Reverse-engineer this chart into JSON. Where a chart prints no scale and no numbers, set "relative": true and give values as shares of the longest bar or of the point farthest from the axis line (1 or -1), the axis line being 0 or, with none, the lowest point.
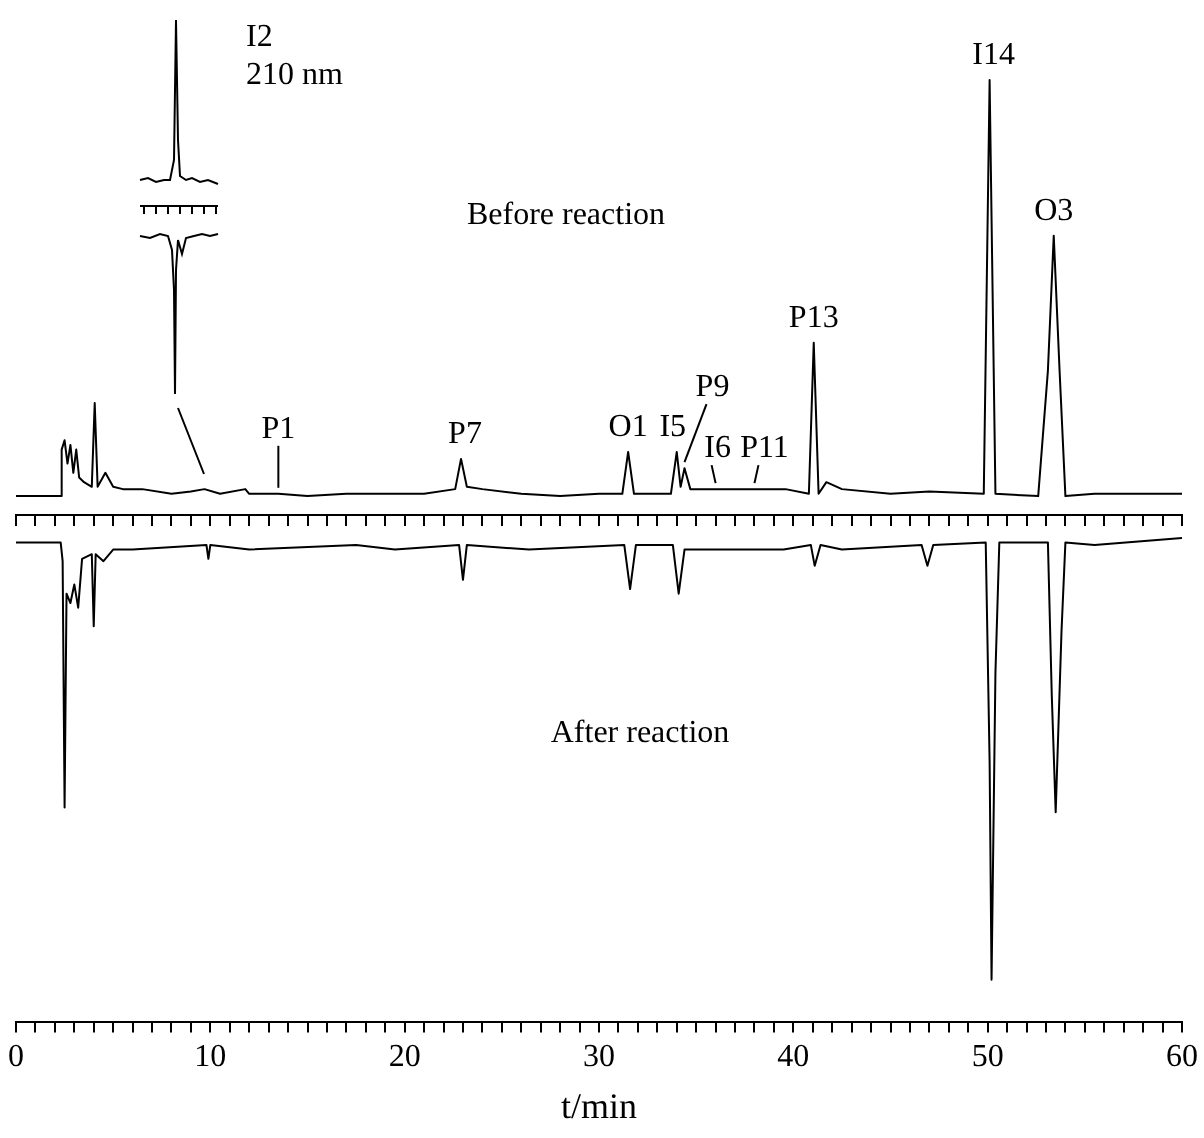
{
  "chart_data": {
    "type": "line",
    "relative": true,
    "grid": false,
    "legend": false,
    "marker": "none",
    "line_style": "solid",
    "xlabel": "t/min",
    "xlim": [
      0,
      60
    ],
    "xticks": [
      0,
      {
        "value": 1,
        "label": null
      },
      {
        "value": 2,
        "label": null
      },
      {
        "value": 3,
        "label": null
      },
      {
        "value": 4,
        "label": null
      },
      {
        "value": 5,
        "label": null
      },
      {
        "value": 6,
        "label": null
      },
      {
        "value": 7,
        "label": null
      },
      {
        "value": 8,
        "label": null
      },
      {
        "value": 9,
        "label": null
      },
      10,
      {
        "value": 11,
        "label": null
      },
      {
        "value": 12,
        "label": null
      },
      {
        "value": 13,
        "label": null
      },
      {
        "value": 14,
        "label": null
      },
      {
        "value": 15,
        "label": null
      },
      {
        "value": 16,
        "label": null
      },
      {
        "value": 17,
        "label": null
      },
      {
        "value": 18,
        "label": null
      },
      {
        "value": 19,
        "label": null
      },
      20,
      {
        "value": 21,
        "label": null
      },
      {
        "value": 22,
        "label": null
      },
      {
        "value": 23,
        "label": null
      },
      {
        "value": 24,
        "label": null
      },
      {
        "value": 25,
        "label": null
      },
      {
        "value": 26,
        "label": null
      },
      {
        "value": 27,
        "label": null
      },
      {
        "value": 28,
        "label": null
      },
      {
        "value": 29,
        "label": null
      },
      30,
      {
        "value": 31,
        "label": null
      },
      {
        "value": 32,
        "label": null
      },
      {
        "value": 33,
        "label": null
      },
      {
        "value": 34,
        "label": null
      },
      {
        "value": 35,
        "label": null
      },
      {
        "value": 36,
        "label": null
      },
      {
        "value": 37,
        "label": null
      },
      {
        "value": 38,
        "label": null
      },
      {
        "value": 39,
        "label": null
      },
      40,
      {
        "value": 41,
        "label": null
      },
      {
        "value": 42,
        "label": null
      },
      {
        "value": 43,
        "label": null
      },
      {
        "value": 44,
        "label": null
      },
      {
        "value": 45,
        "label": null
      },
      {
        "value": 46,
        "label": null
      },
      {
        "value": 47,
        "label": null
      },
      {
        "value": 48,
        "label": null
      },
      {
        "value": 49,
        "label": null
      },
      50,
      {
        "value": 51,
        "label": null
      },
      {
        "value": 52,
        "label": null
      },
      {
        "value": 53,
        "label": null
      },
      {
        "value": 54,
        "label": null
      },
      {
        "value": 55,
        "label": null
      },
      {
        "value": 56,
        "label": null
      },
      {
        "value": 57,
        "label": null
      },
      {
        "value": 58,
        "label": null
      },
      {
        "value": 59,
        "label": null
      },
      60
    ],
    "series": [
      {
        "color": "#000000",
        "x": [
          0,
          2.3,
          2.35,
          2.5,
          2.65,
          2.8,
          2.95,
          3.1,
          3.25,
          3.5,
          3.9,
          4.05,
          4.2,
          4.6,
          5.0,
          5.5,
          6.5,
          8,
          9.0,
          9.7,
          10.5,
          11.8,
          12,
          13.5,
          15,
          17,
          19,
          21,
          22.6,
          22.9,
          23.2,
          24,
          26,
          28,
          30,
          31.2,
          31.5,
          31.8,
          33.7,
          34.0,
          34.2,
          34.4,
          34.7,
          36,
          38,
          39.6,
          40.8,
          41.05,
          41.3,
          41.7,
          42.5,
          45,
          47,
          49.8,
          50.1,
          50.4,
          52.6,
          53.1,
          53.4,
          53.7,
          54,
          55.5,
          60
        ],
        "values": [
          0.04,
          0.04,
          0.14,
          0.16,
          0.11,
          0.15,
          0.09,
          0.14,
          0.08,
          0.07,
          0.06,
          0.24,
          0.06,
          0.09,
          0.06,
          0.055,
          0.055,
          0.045,
          0.05,
          0.055,
          0.045,
          0.055,
          0.045,
          0.045,
          0.04,
          0.045,
          0.045,
          0.045,
          0.055,
          0.12,
          0.06,
          0.055,
          0.045,
          0.04,
          0.045,
          0.045,
          0.135,
          0.045,
          0.045,
          0.135,
          0.06,
          0.1,
          0.055,
          0.055,
          0.055,
          0.055,
          0.045,
          0.37,
          0.045,
          0.07,
          0.055,
          0.045,
          0.05,
          0.045,
          0.935,
          0.045,
          0.04,
          0.31,
          0.6,
          0.31,
          0.04,
          0.045,
          0.045
        ]
      },
      {
        "color": "#000000",
        "x": [
          0,
          2.3,
          2.4,
          2.5,
          2.6,
          2.8,
          3.0,
          3.2,
          3.4,
          3.9,
          4.0,
          4.1,
          4.5,
          5,
          6,
          9.8,
          9.9,
          10,
          12,
          17.5,
          19.5,
          22.8,
          23.0,
          23.2,
          26.4,
          31.3,
          31.6,
          31.9,
          33.8,
          34.1,
          34.4,
          35,
          38,
          39.5,
          40.9,
          41.1,
          41.4,
          42.5,
          46.6,
          46.9,
          47.2,
          49.9,
          50.1,
          50.2,
          50.4,
          50.6,
          53.1,
          53.3,
          53.5,
          53.8,
          54.0,
          55.5,
          60
        ],
        "values": [
          -0.06,
          -0.06,
          -0.1,
          -0.63,
          -0.17,
          -0.19,
          -0.15,
          -0.2,
          -0.095,
          -0.085,
          -0.24,
          -0.085,
          -0.1,
          -0.075,
          -0.075,
          -0.065,
          -0.095,
          -0.065,
          -0.075,
          -0.065,
          -0.075,
          -0.065,
          -0.14,
          -0.065,
          -0.075,
          -0.065,
          -0.16,
          -0.065,
          -0.065,
          -0.17,
          -0.075,
          -0.075,
          -0.075,
          -0.075,
          -0.065,
          -0.11,
          -0.065,
          -0.075,
          -0.065,
          -0.11,
          -0.065,
          -0.06,
          -0.53,
          -1,
          -0.34,
          -0.06,
          -0.06,
          -0.39,
          -0.64,
          -0.25,
          -0.06,
          -0.065,
          -0.05
        ]
      }
    ],
    "annotations": [
      "Before reaction",
      "I2",
      "210 nm",
      "After reaction",
      {
        "text": "P1",
        "x": 13.5,
        "y": 0.045
      },
      {
        "text": "P7",
        "x": 22.9,
        "y": 0.12
      },
      {
        "text": "O1",
        "x": 31.5,
        "y": 0.135
      },
      {
        "text": "I5",
        "x": 34.0,
        "y": 0.135
      },
      {
        "text": "P9",
        "x": 34.4,
        "y": 0.1
      },
      {
        "text": "I6",
        "x": 36.0,
        "y": 0.055
      },
      {
        "text": "P11",
        "x": 38.0,
        "y": 0.055
      },
      {
        "text": "P13",
        "x": 41.05,
        "y": 0.37
      },
      {
        "text": "I14",
        "x": 50.1,
        "y": 0.935
      },
      {
        "text": "O3",
        "x": 53.4,
        "y": 0.6
      }
    ]
  }
}
